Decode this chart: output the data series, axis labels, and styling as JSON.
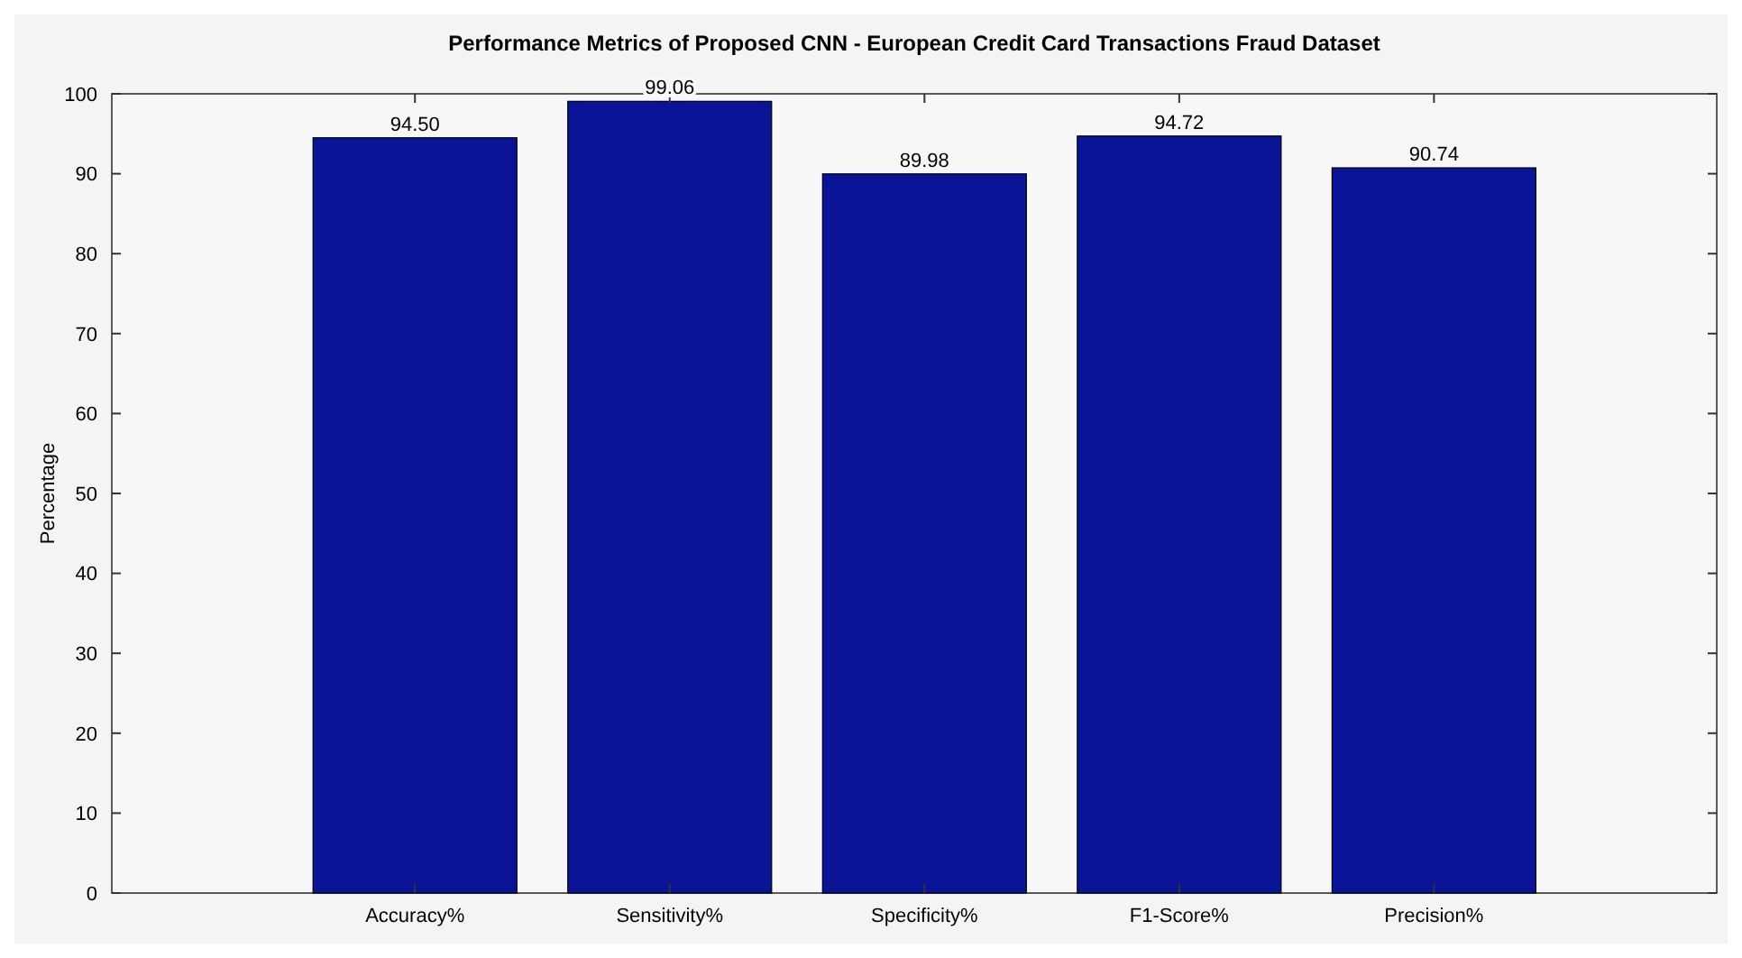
{
  "chart_data": {
    "type": "bar",
    "title": "Performance Metrics of Proposed CNN - European Credit Card Transactions Fraud Dataset",
    "ylabel": "Percentage",
    "categories": [
      "Accuracy%",
      "Sensitivity%",
      "Specificity%",
      "F1-Score%",
      "Precision%"
    ],
    "values": [
      94.5,
      99.06,
      89.98,
      94.72,
      90.74
    ],
    "color": "#0a1496",
    "ylim": [
      0,
      100
    ],
    "yticks": [
      0,
      10,
      20,
      30,
      40,
      50,
      60,
      70,
      80,
      90,
      100
    ],
    "grid": false,
    "value_labels": [
      "94.50",
      "99.06",
      "89.98",
      "94.72",
      "90.74"
    ]
  }
}
